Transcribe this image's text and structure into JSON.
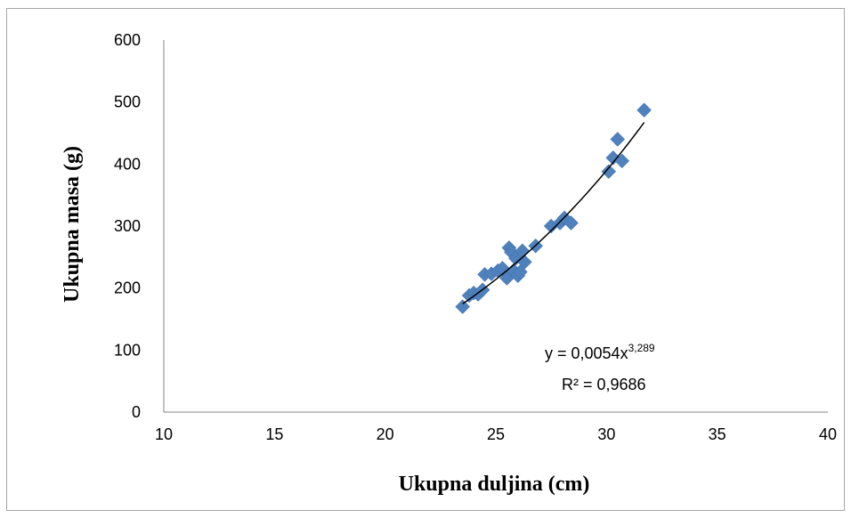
{
  "chart_data": {
    "type": "scatter",
    "xlabel": "Ukupna duljina (cm)",
    "ylabel": "Ukupna masa (g)",
    "xlim": [
      10,
      40
    ],
    "ylim": [
      0,
      600
    ],
    "xticks": [
      "10",
      "15",
      "20",
      "25",
      "30",
      "35",
      "40"
    ],
    "yticks": [
      "0",
      "100",
      "200",
      "300",
      "400",
      "500",
      "600"
    ],
    "grid": false,
    "legend": "none",
    "marker_color": "#4f81bd",
    "points": [
      {
        "x": 23.5,
        "y": 170
      },
      {
        "x": 23.8,
        "y": 188
      },
      {
        "x": 24.0,
        "y": 192
      },
      {
        "x": 24.2,
        "y": 190
      },
      {
        "x": 24.4,
        "y": 197
      },
      {
        "x": 24.5,
        "y": 222
      },
      {
        "x": 24.8,
        "y": 223
      },
      {
        "x": 25.1,
        "y": 228
      },
      {
        "x": 25.3,
        "y": 232
      },
      {
        "x": 25.5,
        "y": 216
      },
      {
        "x": 25.6,
        "y": 265
      },
      {
        "x": 25.7,
        "y": 258
      },
      {
        "x": 25.8,
        "y": 228
      },
      {
        "x": 25.9,
        "y": 248
      },
      {
        "x": 26.0,
        "y": 220
      },
      {
        "x": 26.1,
        "y": 226
      },
      {
        "x": 26.2,
        "y": 260
      },
      {
        "x": 26.3,
        "y": 242
      },
      {
        "x": 26.8,
        "y": 268
      },
      {
        "x": 27.5,
        "y": 300
      },
      {
        "x": 27.9,
        "y": 305
      },
      {
        "x": 28.1,
        "y": 313
      },
      {
        "x": 28.4,
        "y": 305
      },
      {
        "x": 30.1,
        "y": 388
      },
      {
        "x": 30.3,
        "y": 410
      },
      {
        "x": 30.5,
        "y": 440
      },
      {
        "x": 30.7,
        "y": 405
      },
      {
        "x": 31.7,
        "y": 487
      }
    ],
    "trendline": {
      "type": "power",
      "a": 0.0054,
      "b": 3.289,
      "x_range": [
        23.5,
        31.7
      ],
      "equation_prefix": "y = 0,0054x",
      "equation_exponent": "3,289",
      "r_squared_text": "R² = 0,9686"
    }
  }
}
